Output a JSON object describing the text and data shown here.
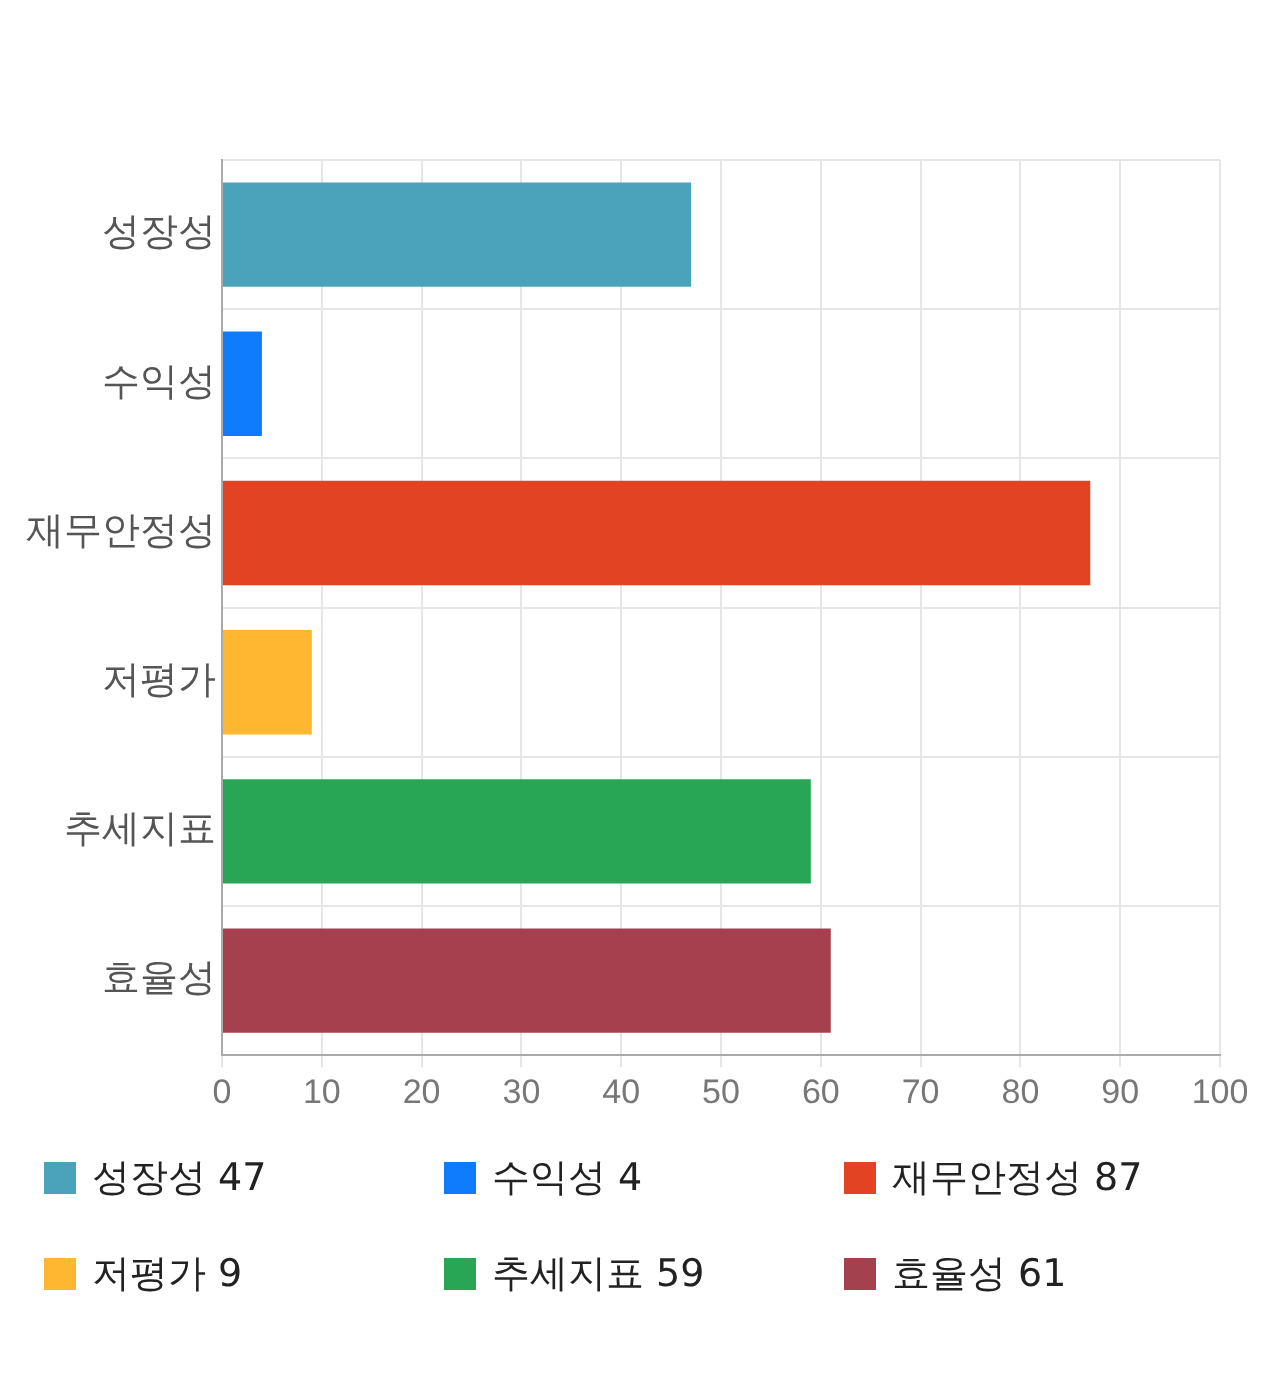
{
  "chart_data": {
    "type": "bar",
    "orientation": "horizontal",
    "categories": [
      "성장성",
      "수익성",
      "재무안정성",
      "저평가",
      "추세지표",
      "효율성"
    ],
    "values": [
      47,
      4,
      87,
      9,
      59,
      61
    ],
    "value_labels": [
      "47",
      "4",
      "87",
      "9",
      "59",
      "61"
    ],
    "colors": [
      "#4aa3ba",
      "#0f7cfd",
      "#e24423",
      "#ffb732",
      "#28a655",
      "#a5404e"
    ],
    "xlim": [
      0,
      100
    ],
    "xticks": [
      0,
      10,
      20,
      30,
      40,
      50,
      60,
      70,
      80,
      90,
      100
    ],
    "grid": true
  }
}
